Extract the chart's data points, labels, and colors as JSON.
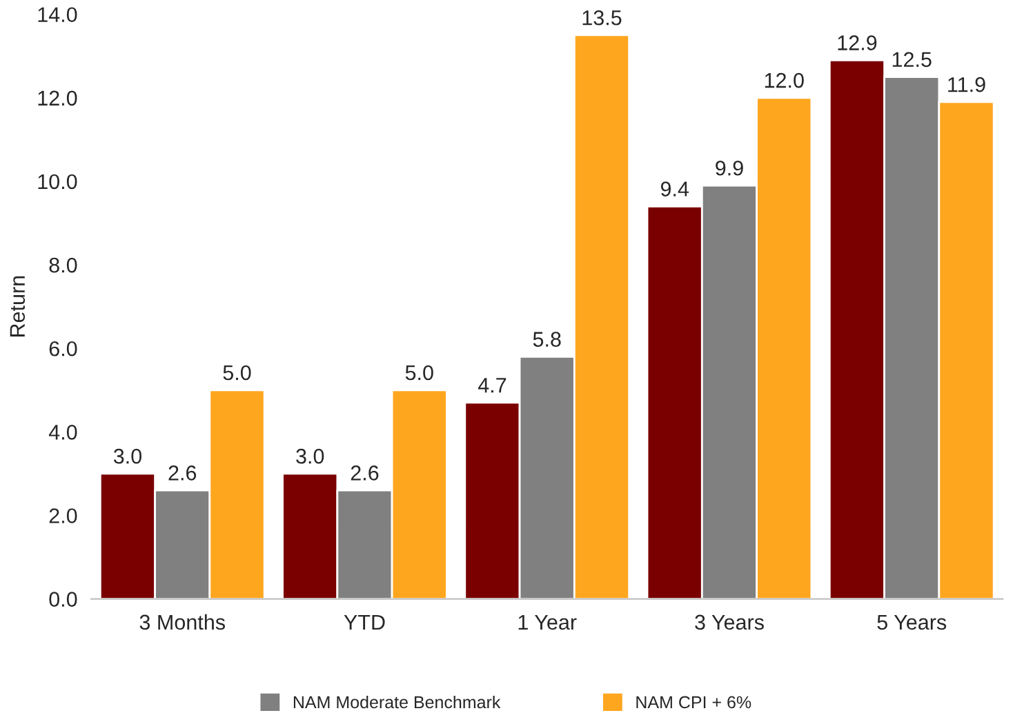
{
  "chart_data": {
    "type": "bar",
    "ylabel": "Return",
    "categories": [
      "3 Months",
      "YTD",
      "1 Year",
      "3 Years",
      "5 Years"
    ],
    "series": [
      {
        "color": "#7a0000",
        "values": [
          3.0,
          3.0,
          4.7,
          9.4,
          12.9
        ],
        "value_labels": [
          "3.0",
          "3.0",
          "4.7",
          "9.4",
          "12.9"
        ]
      },
      {
        "name": "NAM Moderate Benchmark",
        "color": "#808080",
        "values": [
          2.6,
          2.6,
          5.8,
          9.9,
          12.5
        ],
        "value_labels": [
          "2.6",
          "2.6",
          "5.8",
          "9.9",
          "12.5"
        ]
      },
      {
        "name": "NAM CPI + 6%",
        "color": "#ffa61f",
        "values": [
          5.0,
          5.0,
          13.5,
          12.0,
          11.9
        ],
        "value_labels": [
          "5.0",
          "5.0",
          "13.5",
          "12.0",
          "11.9"
        ]
      }
    ],
    "ylim": [
      0,
      14
    ],
    "yticks": [
      {
        "value": 0,
        "label": "0.0"
      },
      {
        "value": 2,
        "label": "2.0"
      },
      {
        "value": 4,
        "label": "4.0"
      },
      {
        "value": 6,
        "label": "6.0"
      },
      {
        "value": 8,
        "label": "8.0"
      },
      {
        "value": 10,
        "label": "10.0"
      },
      {
        "value": 12,
        "label": "12.0"
      },
      {
        "value": 14,
        "label": "14.0"
      }
    ],
    "grid": false,
    "legend": "bottom"
  }
}
